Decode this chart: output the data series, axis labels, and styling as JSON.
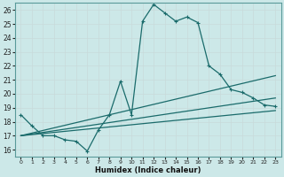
{
  "xlabel": "Humidex (Indice chaleur)",
  "bg_color": "#cce8e8",
  "grid_color": "#c8dada",
  "line_color": "#1a6b6b",
  "xlim": [
    -0.5,
    23.5
  ],
  "ylim": [
    15.5,
    26.5
  ],
  "x_ticks": [
    0,
    1,
    2,
    3,
    4,
    5,
    6,
    7,
    8,
    9,
    10,
    11,
    12,
    13,
    14,
    15,
    16,
    17,
    18,
    19,
    20,
    21,
    22,
    23
  ],
  "y_ticks": [
    16,
    17,
    18,
    19,
    20,
    21,
    22,
    23,
    24,
    25,
    26
  ],
  "line1_x": [
    0,
    1,
    2,
    3,
    4,
    5,
    6,
    7,
    8,
    9,
    10,
    11,
    12,
    13,
    14,
    15,
    16,
    17,
    18,
    19,
    20,
    21,
    22,
    23
  ],
  "line1_y": [
    18.5,
    17.7,
    17.0,
    17.0,
    16.7,
    16.6,
    15.9,
    17.4,
    18.5,
    20.9,
    18.5,
    25.2,
    26.4,
    25.8,
    25.2,
    25.5,
    25.1,
    22.0,
    21.4,
    20.3,
    20.1,
    19.7,
    19.2,
    19.1
  ],
  "line2_x": [
    0,
    23
  ],
  "line2_y": [
    17.0,
    21.3
  ],
  "line3_x": [
    0,
    23
  ],
  "line3_y": [
    17.0,
    19.7
  ],
  "line4_x": [
    0,
    23
  ],
  "line4_y": [
    17.0,
    18.8
  ]
}
